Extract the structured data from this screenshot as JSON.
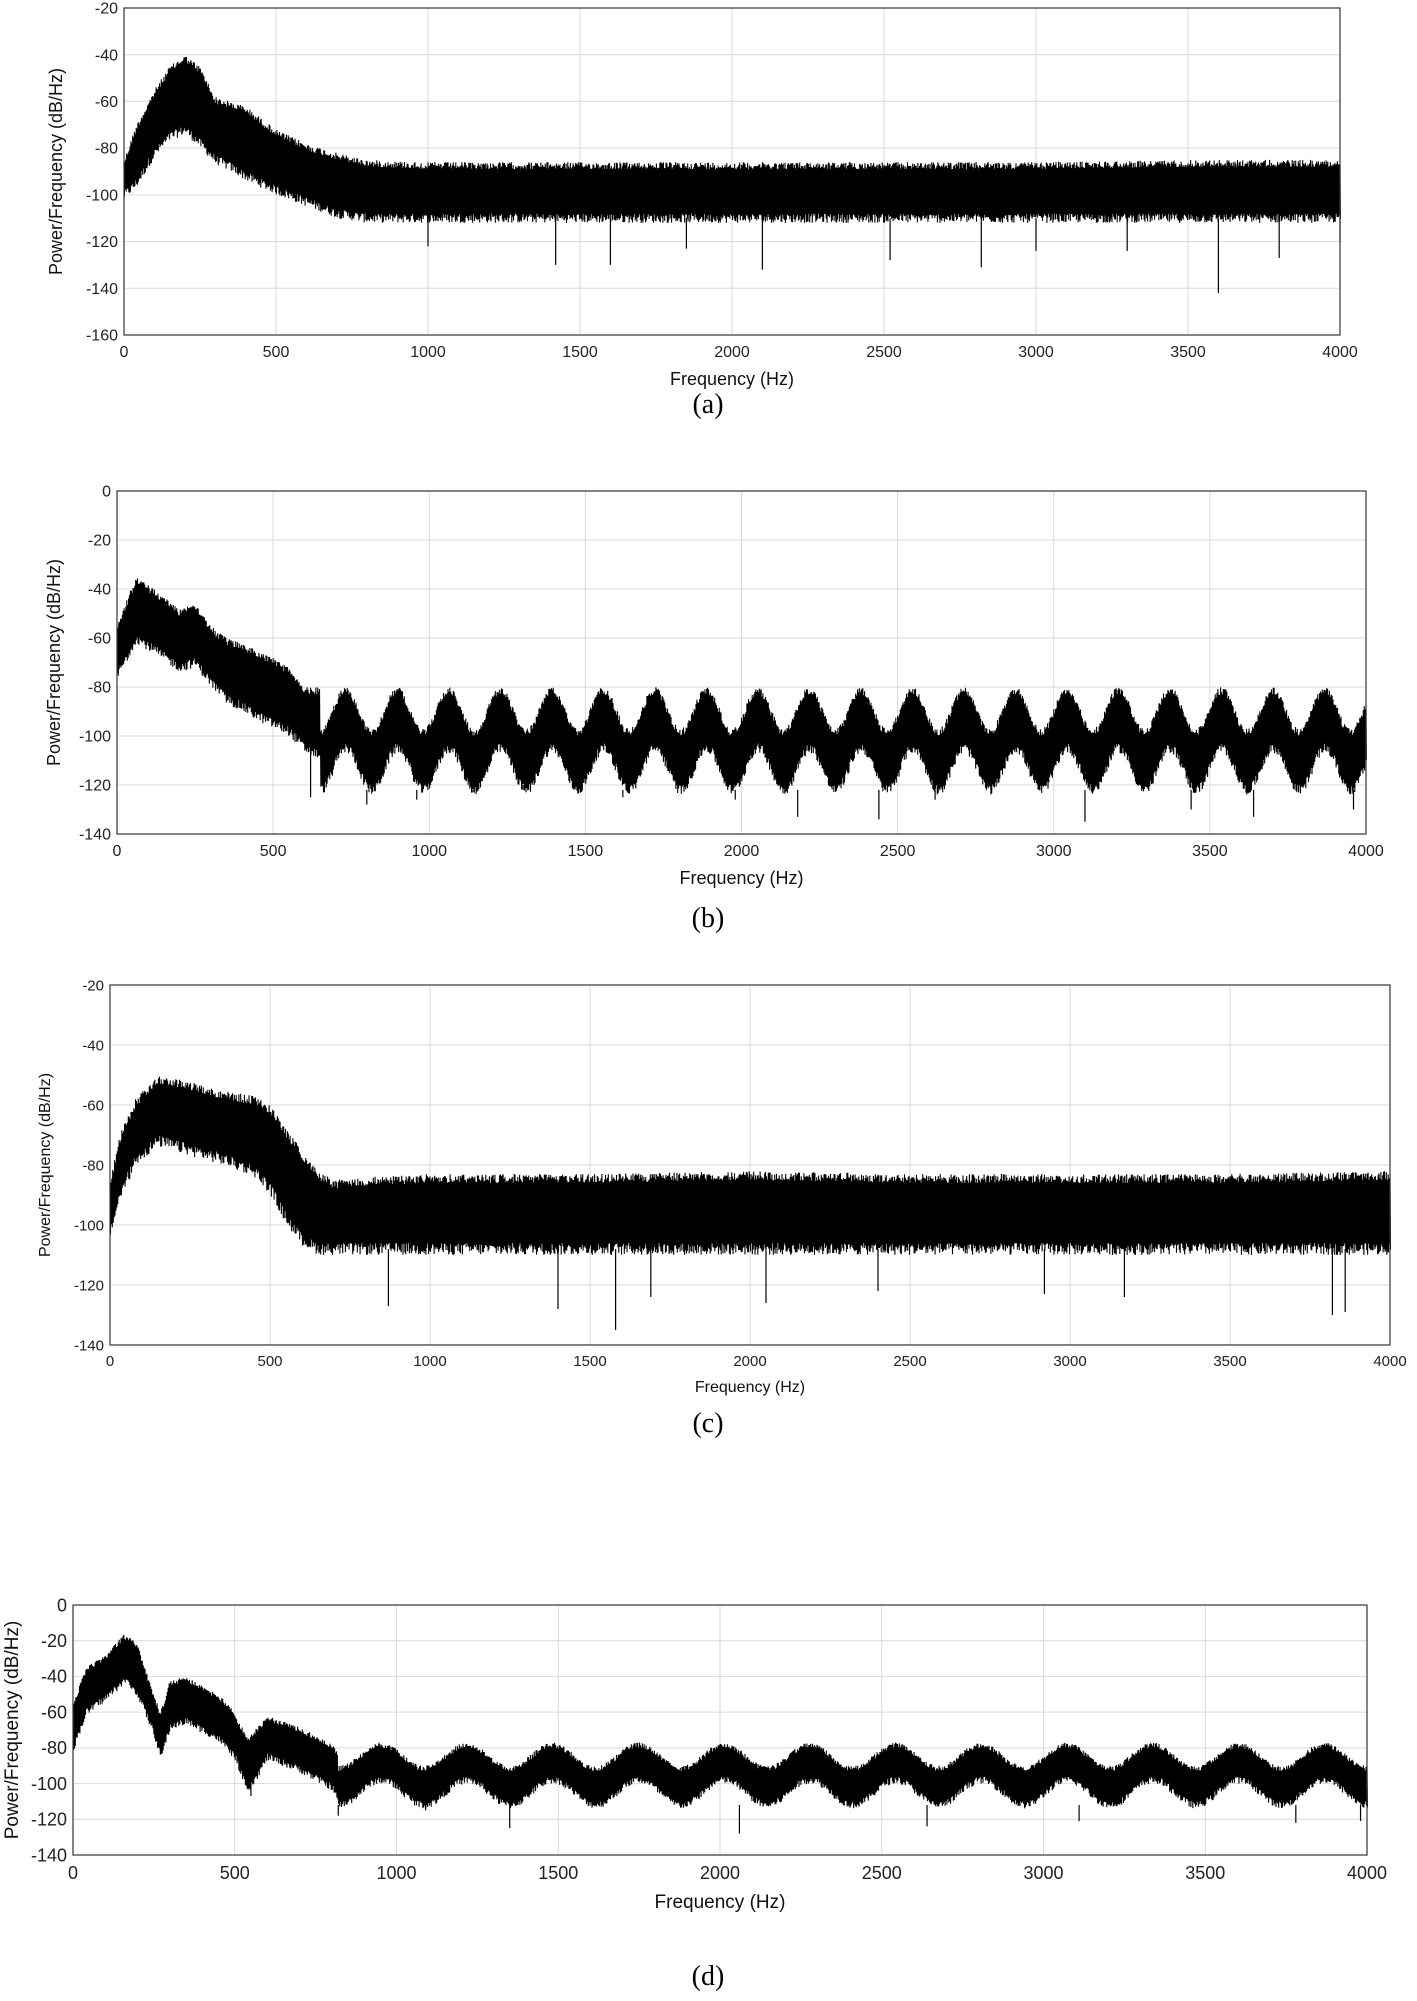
{
  "chart_data": [
    {
      "type": "line",
      "caption": "(a)",
      "xlabel": "Frequency (Hz)",
      "ylabel": "Power/Frequency (dB/Hz)",
      "xlim": [
        0,
        4000
      ],
      "ylim": [
        -160,
        -20
      ],
      "xticks": [
        0,
        500,
        1000,
        1500,
        2000,
        2500,
        3000,
        3500,
        4000
      ],
      "yticks": [
        -20,
        -40,
        -60,
        -80,
        -100,
        -120,
        -140,
        -160
      ],
      "grid": true,
      "series_color": "#000000",
      "envelope": {
        "x": [
          0,
          40,
          100,
          150,
          200,
          250,
          300,
          350,
          400,
          450,
          500,
          600,
          700,
          800,
          1000,
          1500,
          2000,
          2500,
          3000,
          3500,
          4000
        ],
        "upper": [
          -85,
          -70,
          -55,
          -45,
          -40,
          -45,
          -58,
          -60,
          -62,
          -67,
          -72,
          -78,
          -82,
          -85,
          -86,
          -86,
          -86,
          -86,
          -86,
          -85,
          -85
        ],
        "lower": [
          -100,
          -95,
          -82,
          -75,
          -72,
          -78,
          -85,
          -88,
          -92,
          -95,
          -98,
          -103,
          -108,
          -110,
          -110,
          -110,
          -110,
          -110,
          -110,
          -110,
          -110
        ]
      },
      "dips": [
        [
          1000,
          -122
        ],
        [
          1420,
          -130
        ],
        [
          1600,
          -130
        ],
        [
          1850,
          -123
        ],
        [
          2100,
          -132
        ],
        [
          2520,
          -128
        ],
        [
          2820,
          -131
        ],
        [
          3000,
          -124
        ],
        [
          3300,
          -124
        ],
        [
          3600,
          -142
        ],
        [
          3800,
          -127
        ],
        [
          4000,
          -120
        ]
      ]
    },
    {
      "type": "line",
      "caption": "(b)",
      "xlabel": "Frequency (Hz)",
      "ylabel": "Power/Frequency (dB/Hz)",
      "xlim": [
        0,
        4000
      ],
      "ylim": [
        -140,
        0
      ],
      "xticks": [
        0,
        500,
        1000,
        1500,
        2000,
        2500,
        3000,
        3500,
        4000
      ],
      "yticks": [
        0,
        -20,
        -40,
        -60,
        -80,
        -100,
        -120,
        -140
      ],
      "grid": true,
      "series_color": "#000000",
      "envelope": {
        "x": [
          0,
          30,
          60,
          120,
          200,
          250,
          300,
          350,
          400,
          450,
          500,
          550,
          600,
          650,
          4000
        ],
        "upper": [
          -55,
          -45,
          -35,
          -40,
          -48,
          -45,
          -55,
          -60,
          -62,
          -65,
          -68,
          -72,
          -80,
          -80,
          -80
        ],
        "lower": [
          -75,
          -68,
          -60,
          -65,
          -72,
          -70,
          -78,
          -85,
          -88,
          -92,
          -95,
          -98,
          -105,
          -108,
          -108
        ]
      },
      "ripple": {
        "start": 650,
        "period": 165,
        "peak_top": -80,
        "trough_top": -97,
        "peak_bottom": -105,
        "trough_bottom": -122
      },
      "dips": [
        [
          620,
          -125
        ],
        [
          800,
          -128
        ],
        [
          960,
          -126
        ],
        [
          1140,
          -123
        ],
        [
          1300,
          -120
        ],
        [
          1620,
          -125
        ],
        [
          1980,
          -126
        ],
        [
          2180,
          -133
        ],
        [
          2440,
          -134
        ],
        [
          2620,
          -126
        ],
        [
          3100,
          -135
        ],
        [
          3440,
          -130
        ],
        [
          3640,
          -133
        ],
        [
          3960,
          -130
        ]
      ]
    },
    {
      "type": "line",
      "caption": "(c)",
      "xlabel": "Frequency (Hz)",
      "ylabel": "Power/Frequency (dB/Hz)",
      "xlim": [
        0,
        4000
      ],
      "ylim": [
        -140,
        -20
      ],
      "xticks": [
        0,
        500,
        1000,
        1500,
        2000,
        2500,
        3000,
        3500,
        4000
      ],
      "yticks": [
        -20,
        -40,
        -60,
        -80,
        -100,
        -120,
        -140
      ],
      "grid": true,
      "series_color": "#000000",
      "envelope": {
        "x": [
          0,
          30,
          80,
          150,
          250,
          350,
          450,
          500,
          550,
          600,
          650,
          700,
          800,
          1000,
          1500,
          2000,
          2500,
          3000,
          3500,
          4000
        ],
        "upper": [
          -85,
          -70,
          -58,
          -50,
          -52,
          -55,
          -57,
          -60,
          -68,
          -75,
          -82,
          -85,
          -84,
          -83,
          -83,
          -82,
          -83,
          -83,
          -83,
          -82
        ],
        "lower": [
          -102,
          -90,
          -78,
          -72,
          -75,
          -78,
          -82,
          -88,
          -98,
          -105,
          -108,
          -108,
          -108,
          -108,
          -108,
          -108,
          -108,
          -108,
          -108,
          -108
        ]
      },
      "dips": [
        [
          870,
          -127
        ],
        [
          1400,
          -128
        ],
        [
          1580,
          -135
        ],
        [
          1690,
          -124
        ],
        [
          2050,
          -126
        ],
        [
          2400,
          -122
        ],
        [
          2920,
          -123
        ],
        [
          3170,
          -124
        ],
        [
          3820,
          -130
        ],
        [
          3860,
          -129
        ]
      ]
    },
    {
      "type": "line",
      "caption": "(d)",
      "xlabel": "Frequency (Hz)",
      "ylabel": "Power/Frequency (dB/Hz)",
      "xlim": [
        0,
        4000
      ],
      "ylim": [
        -140,
        0
      ],
      "xticks": [
        0,
        500,
        1000,
        1500,
        2000,
        2500,
        3000,
        3500,
        4000
      ],
      "yticks": [
        0,
        -20,
        -40,
        -60,
        -80,
        -100,
        -120,
        -140
      ],
      "grid": true,
      "series_color": "#000000",
      "envelope": {
        "x": [
          0,
          40,
          100,
          160,
          200,
          250,
          270,
          300,
          350,
          400,
          450,
          500,
          540,
          600,
          700,
          800,
          820,
          4000
        ],
        "upper": [
          -55,
          -35,
          -28,
          -16,
          -22,
          -50,
          -60,
          -42,
          -40,
          -45,
          -50,
          -60,
          -75,
          -62,
          -68,
          -78,
          -82,
          -78
        ],
        "lower": [
          -80,
          -60,
          -52,
          -42,
          -50,
          -72,
          -85,
          -68,
          -65,
          -70,
          -75,
          -85,
          -105,
          -85,
          -92,
          -102,
          -110,
          -105
        ]
      },
      "ripple": {
        "start": 820,
        "period": 265,
        "peak_top": -77,
        "trough_top": -90,
        "peak_bottom": -98,
        "trough_bottom": -112
      },
      "dips": [
        [
          550,
          -107
        ],
        [
          820,
          -118
        ],
        [
          1090,
          -115
        ],
        [
          1350,
          -125
        ],
        [
          2060,
          -128
        ],
        [
          2640,
          -124
        ],
        [
          3110,
          -121
        ],
        [
          3780,
          -122
        ],
        [
          3980,
          -121
        ]
      ]
    }
  ]
}
